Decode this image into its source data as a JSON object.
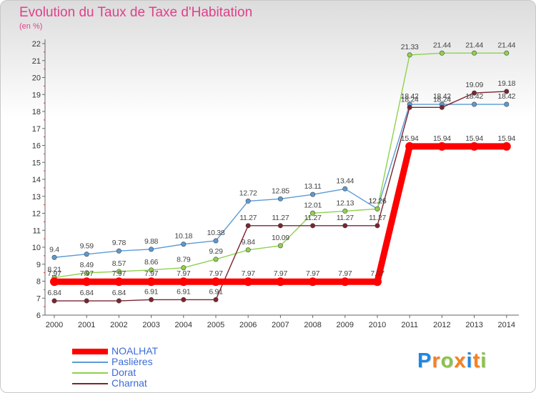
{
  "chart_data": {
    "type": "line",
    "title": "Evolution du Taux de Taxe d'Habitation",
    "unit": "(en %)",
    "x": [
      "2000",
      "2001",
      "2002",
      "2003",
      "2004",
      "2005",
      "2006",
      "2007",
      "2008",
      "2009",
      "2010",
      "2011",
      "2012",
      "2013",
      "2014"
    ],
    "ylim": [
      6,
      22
    ],
    "yticks": [
      "6",
      "7",
      "8",
      "9",
      "10",
      "11",
      "12",
      "13",
      "14",
      "15",
      "16",
      "17",
      "18",
      "19",
      "20",
      "21",
      "22"
    ],
    "grid": false,
    "legend_position": "bottom-left",
    "series": [
      {
        "name": "NOALHAT",
        "color": "#ff0000",
        "values": [
          7.97,
          7.97,
          7.97,
          7.97,
          7.97,
          7.97,
          7.97,
          7.97,
          7.97,
          7.97,
          7.97,
          15.94,
          15.94,
          15.94,
          15.94
        ],
        "labels": [
          "7.97",
          "7.97",
          "7.97",
          "7.97",
          "7.97",
          "7.97",
          "7.97",
          "7.97",
          "7.97",
          "7.97",
          "7.97",
          "15.94",
          "15.94",
          "15.94",
          "15.94"
        ]
      },
      {
        "name": "Paslières",
        "color": "#5b9bd5",
        "values": [
          9.4,
          9.59,
          9.78,
          9.88,
          10.18,
          10.38,
          12.72,
          12.85,
          13.11,
          13.44,
          12.26,
          18.42,
          18.42,
          18.42,
          18.42
        ],
        "labels": [
          "9.4",
          "9.59",
          "9.78",
          "9.88",
          "10.18",
          "10.38",
          "12.72",
          "12.85",
          "13.11",
          "13.44",
          "12.26",
          "18.42",
          "18.42",
          "18.42",
          "18.42"
        ]
      },
      {
        "name": "Dorat",
        "color": "#8fd14f",
        "values": [
          8.21,
          8.49,
          8.57,
          8.66,
          8.79,
          9.29,
          9.84,
          10.09,
          12.01,
          12.13,
          12.26,
          21.33,
          21.44,
          21.44,
          21.44
        ],
        "labels": [
          "8.21",
          "8.49",
          "8.57",
          "8.66",
          "8.79",
          "9.29",
          "9.84",
          "10.09",
          "12.01",
          "12.13",
          "12.26",
          "21.33",
          "21.44",
          "21.44",
          "21.44"
        ]
      },
      {
        "name": "Charnat",
        "color": "#7b2430",
        "values": [
          6.84,
          6.84,
          6.84,
          6.91,
          6.91,
          6.91,
          11.27,
          11.27,
          11.27,
          11.27,
          11.27,
          18.24,
          18.24,
          19.09,
          19.18
        ],
        "labels": [
          "6.84",
          "6.84",
          "6.84",
          "6.91",
          "6.91",
          "6.91",
          "11.27",
          "11.27",
          "11.27",
          "11.27",
          "11.27",
          "18.24",
          "18.24",
          "19.09",
          "19.18"
        ]
      }
    ]
  },
  "logo": {
    "letters": [
      {
        "ch": "P",
        "color": "#1e88e5"
      },
      {
        "ch": "r",
        "color": "#f58220"
      },
      {
        "ch": "o",
        "color": "#8bc34a"
      },
      {
        "ch": "x",
        "color": "#f58220"
      },
      {
        "ch": "i",
        "color": "#1e88e5"
      },
      {
        "ch": "t",
        "color": "#f58220"
      },
      {
        "ch": "i",
        "color": "#8bc34a"
      }
    ]
  }
}
